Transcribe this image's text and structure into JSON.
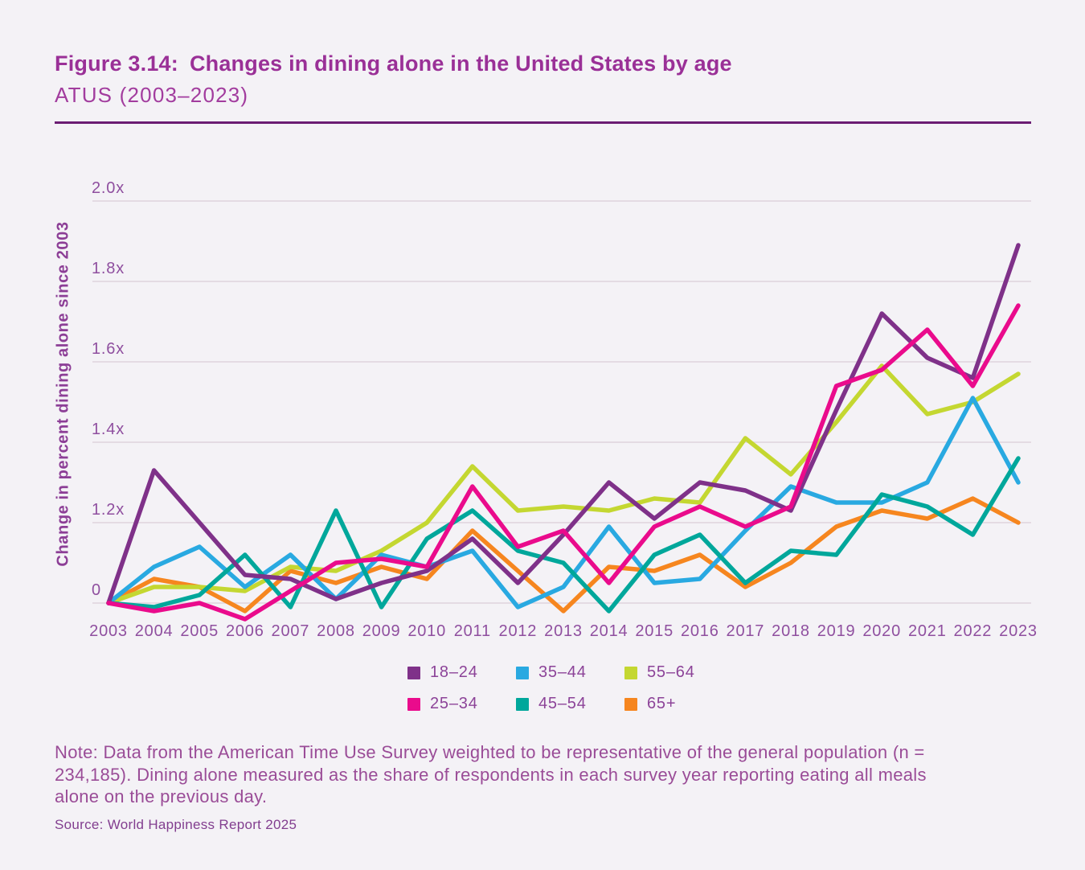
{
  "header": {
    "figure_label": "Figure 3.14:",
    "title": "Changes in dining alone in the United States by age",
    "subtitle": "ATUS (2003–2023)"
  },
  "chart_data": {
    "type": "line",
    "title": "Changes in dining alone in the United States by age",
    "subtitle": "ATUS (2003–2023)",
    "ylabel": "Change in percent dining alone since 2003",
    "xlabel": "",
    "grid": true,
    "legend_position": "bottom",
    "baseline_value": 1.0,
    "ylim": [
      0.95,
      2.05
    ],
    "x": [
      2003,
      2004,
      2005,
      2006,
      2007,
      2008,
      2009,
      2010,
      2011,
      2012,
      2013,
      2014,
      2015,
      2016,
      2017,
      2018,
      2019,
      2020,
      2021,
      2022,
      2023
    ],
    "y_ticks": [
      {
        "label": "2.0x",
        "value": 2.0
      },
      {
        "label": "1.8x",
        "value": 1.8
      },
      {
        "label": "1.6x",
        "value": 1.6
      },
      {
        "label": "1.4x",
        "value": 1.4
      },
      {
        "label": "1.2x",
        "value": 1.2
      },
      {
        "label": "0",
        "value": 1.0
      }
    ],
    "series": [
      {
        "id": "18-24",
        "name": "18–24",
        "color": "#7F3189",
        "values": [
          1.0,
          1.33,
          1.2,
          1.07,
          1.06,
          1.01,
          1.05,
          1.08,
          1.16,
          1.05,
          1.17,
          1.3,
          1.21,
          1.3,
          1.28,
          1.23,
          1.48,
          1.72,
          1.61,
          1.56,
          1.89
        ]
      },
      {
        "id": "25-34",
        "name": "25–34",
        "color": "#EA0B8C",
        "values": [
          1.0,
          0.98,
          1.0,
          0.96,
          1.03,
          1.1,
          1.11,
          1.09,
          1.29,
          1.14,
          1.18,
          1.05,
          1.19,
          1.24,
          1.19,
          1.24,
          1.54,
          1.58,
          1.68,
          1.54,
          1.74
        ]
      },
      {
        "id": "35-44",
        "name": "35–44",
        "color": "#29A9E1",
        "values": [
          1.0,
          1.09,
          1.14,
          1.04,
          1.12,
          1.01,
          1.12,
          1.09,
          1.13,
          0.99,
          1.04,
          1.19,
          1.05,
          1.06,
          1.18,
          1.29,
          1.25,
          1.25,
          1.3,
          1.51,
          1.3
        ]
      },
      {
        "id": "45-54",
        "name": "45–54",
        "color": "#00A79B",
        "values": [
          1.0,
          0.99,
          1.02,
          1.12,
          0.99,
          1.23,
          0.99,
          1.16,
          1.23,
          1.13,
          1.1,
          0.98,
          1.12,
          1.17,
          1.05,
          1.13,
          1.12,
          1.27,
          1.24,
          1.17,
          1.36
        ]
      },
      {
        "id": "55-64",
        "name": "55–64",
        "color": "#C4D731",
        "values": [
          1.0,
          1.04,
          1.04,
          1.03,
          1.09,
          1.08,
          1.13,
          1.2,
          1.34,
          1.23,
          1.24,
          1.23,
          1.26,
          1.25,
          1.41,
          1.32,
          1.45,
          1.59,
          1.47,
          1.5,
          1.57
        ]
      },
      {
        "id": "65plus",
        "name": "65+",
        "color": "#F6861F",
        "values": [
          1.0,
          1.06,
          1.04,
          0.98,
          1.08,
          1.05,
          1.09,
          1.06,
          1.18,
          1.08,
          0.98,
          1.09,
          1.08,
          1.12,
          1.04,
          1.1,
          1.19,
          1.23,
          1.21,
          1.26,
          1.2
        ]
      }
    ]
  },
  "note": "Note: Data from the American Time Use Survey weighted to be representative of the general population (n = 234,185). Dining alone measured as the share of respondents in each survey year reporting eating all meals alone on the previous day.",
  "source": "Source: World Happiness Report 2025",
  "style_colors": {
    "background": "#F4F2F6",
    "title": "#9A3097",
    "divider": "#6B1D73",
    "axis_text": "#8F4F9F",
    "gridline": "#E4DBE3"
  }
}
